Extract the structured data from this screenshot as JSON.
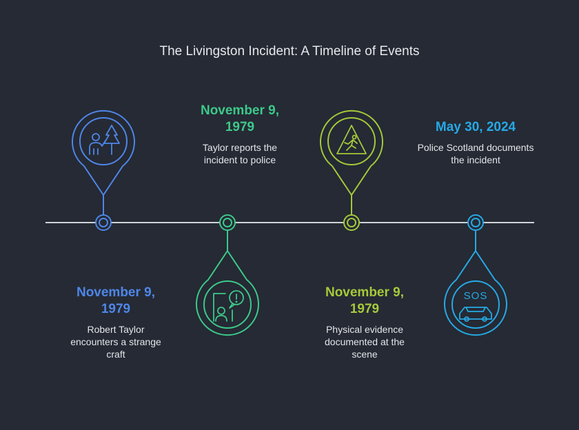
{
  "title": "The Livingston Incident: A Timeline of Events",
  "colors": {
    "background": "#252a34",
    "line": "#d0d3d8",
    "blue": "#4f86e8",
    "green": "#3dc98a",
    "lime": "#a6c93a",
    "cyan": "#26a9e6"
  },
  "events": [
    {
      "date": "November 9, 1979",
      "description": "Robert Taylor encounters a strange craft",
      "icon": "person-forest-icon",
      "color": "#4f86e8"
    },
    {
      "date": "November 9, 1979",
      "description": "Taylor reports the incident to police",
      "icon": "person-report-alert-icon",
      "color": "#3dc98a"
    },
    {
      "date": "November 9, 1979",
      "description": "Physical evidence documented at the scene",
      "icon": "warning-sign-icon",
      "color": "#a6c93a"
    },
    {
      "date": "May 30, 2024",
      "description": "Police Scotland documents the incident",
      "icon": "sos-car-icon",
      "color": "#26a9e6"
    }
  ]
}
